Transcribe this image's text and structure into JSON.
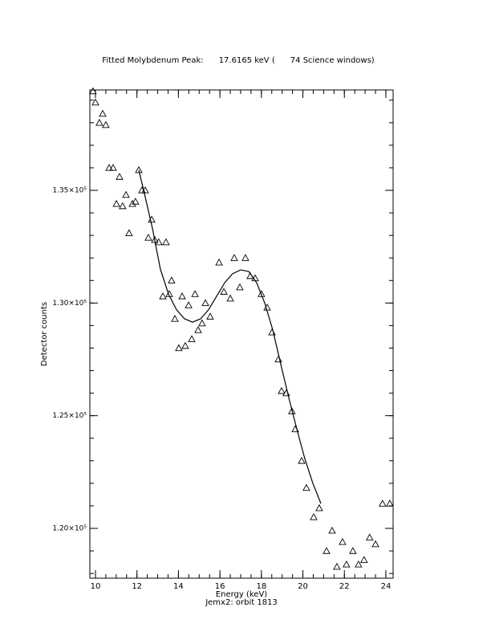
{
  "chart_data": {
    "type": "scatter",
    "title": "Fitted Molybdenum Peak:      17.6165 keV (      74 Science windows)",
    "subtitle": "Jemx2: orbit 1813",
    "x_label": "Energy (keV)",
    "y_label": "Detector counts",
    "xlim": [
      9.73,
      24.35
    ],
    "ylim": [
      117790,
      139455
    ],
    "xticks": [
      10,
      12,
      14,
      16,
      18,
      20,
      22,
      24
    ],
    "yticks": [
      {
        "value": 120000,
        "label": "1.20×10⁵"
      },
      {
        "value": 125000,
        "label": "1.25×10⁵"
      },
      {
        "value": 130000,
        "label": "1.30×10⁵"
      },
      {
        "value": 135000,
        "label": "1.35×10⁵"
      }
    ],
    "series": [
      {
        "name": "data",
        "marker": "triangle",
        "color": "#000000",
        "x": [
          9.88,
          10.0,
          10.19,
          10.35,
          10.5,
          10.66,
          10.85,
          11.01,
          11.16,
          11.31,
          11.47,
          11.62,
          11.78,
          11.93,
          12.09,
          12.24,
          12.4,
          12.55,
          12.71,
          12.86,
          13.05,
          13.25,
          13.4,
          13.56,
          13.67,
          13.83,
          14.02,
          14.18,
          14.33,
          14.49,
          14.64,
          14.8,
          14.95,
          15.14,
          15.3,
          15.53,
          15.96,
          16.19,
          16.5,
          16.69,
          16.96,
          17.23,
          17.46,
          17.7,
          18.0,
          18.28,
          18.51,
          18.82,
          18.97,
          19.2,
          19.47,
          19.63,
          19.94,
          20.17,
          20.52,
          20.79,
          21.14,
          21.41,
          21.64,
          21.91,
          22.1,
          22.41,
          22.68,
          22.95,
          23.22,
          23.5,
          23.84,
          24.19
        ],
        "values": [
          139400,
          138900,
          138000,
          138400,
          137900,
          136000,
          136000,
          134400,
          135600,
          134300,
          134800,
          133100,
          134400,
          134500,
          135900,
          135000,
          135000,
          132900,
          133700,
          132800,
          132700,
          130300,
          132700,
          130400,
          131000,
          129300,
          128000,
          130300,
          128100,
          129900,
          128400,
          130400,
          128800,
          129100,
          130000,
          129400,
          131800,
          130500,
          130200,
          132000,
          130700,
          132000,
          131200,
          131100,
          130400,
          129800,
          128700,
          127500,
          126100,
          126000,
          125200,
          124400,
          123000,
          121800,
          120500,
          120900,
          119000,
          119900,
          118300,
          119400,
          118400,
          119000,
          118400,
          118600,
          119600,
          119300,
          121100,
          121100
        ]
      },
      {
        "name": "fit",
        "line": true,
        "color": "#000000",
        "x": [
          12.09,
          12.4,
          12.75,
          13.13,
          13.52,
          13.91,
          14.29,
          14.68,
          15.07,
          15.45,
          15.84,
          16.23,
          16.61,
          17.0,
          17.39,
          17.77,
          18.16,
          18.55,
          18.93,
          19.32,
          19.71,
          20.09,
          20.48,
          20.87
        ],
        "values": [
          135900,
          134700,
          133300,
          131500,
          130400,
          129700,
          129300,
          129150,
          129300,
          129700,
          130300,
          130900,
          131300,
          131470,
          131400,
          130900,
          130000,
          128800,
          127300,
          125800,
          124400,
          123100,
          122000,
          121100
        ]
      }
    ]
  }
}
